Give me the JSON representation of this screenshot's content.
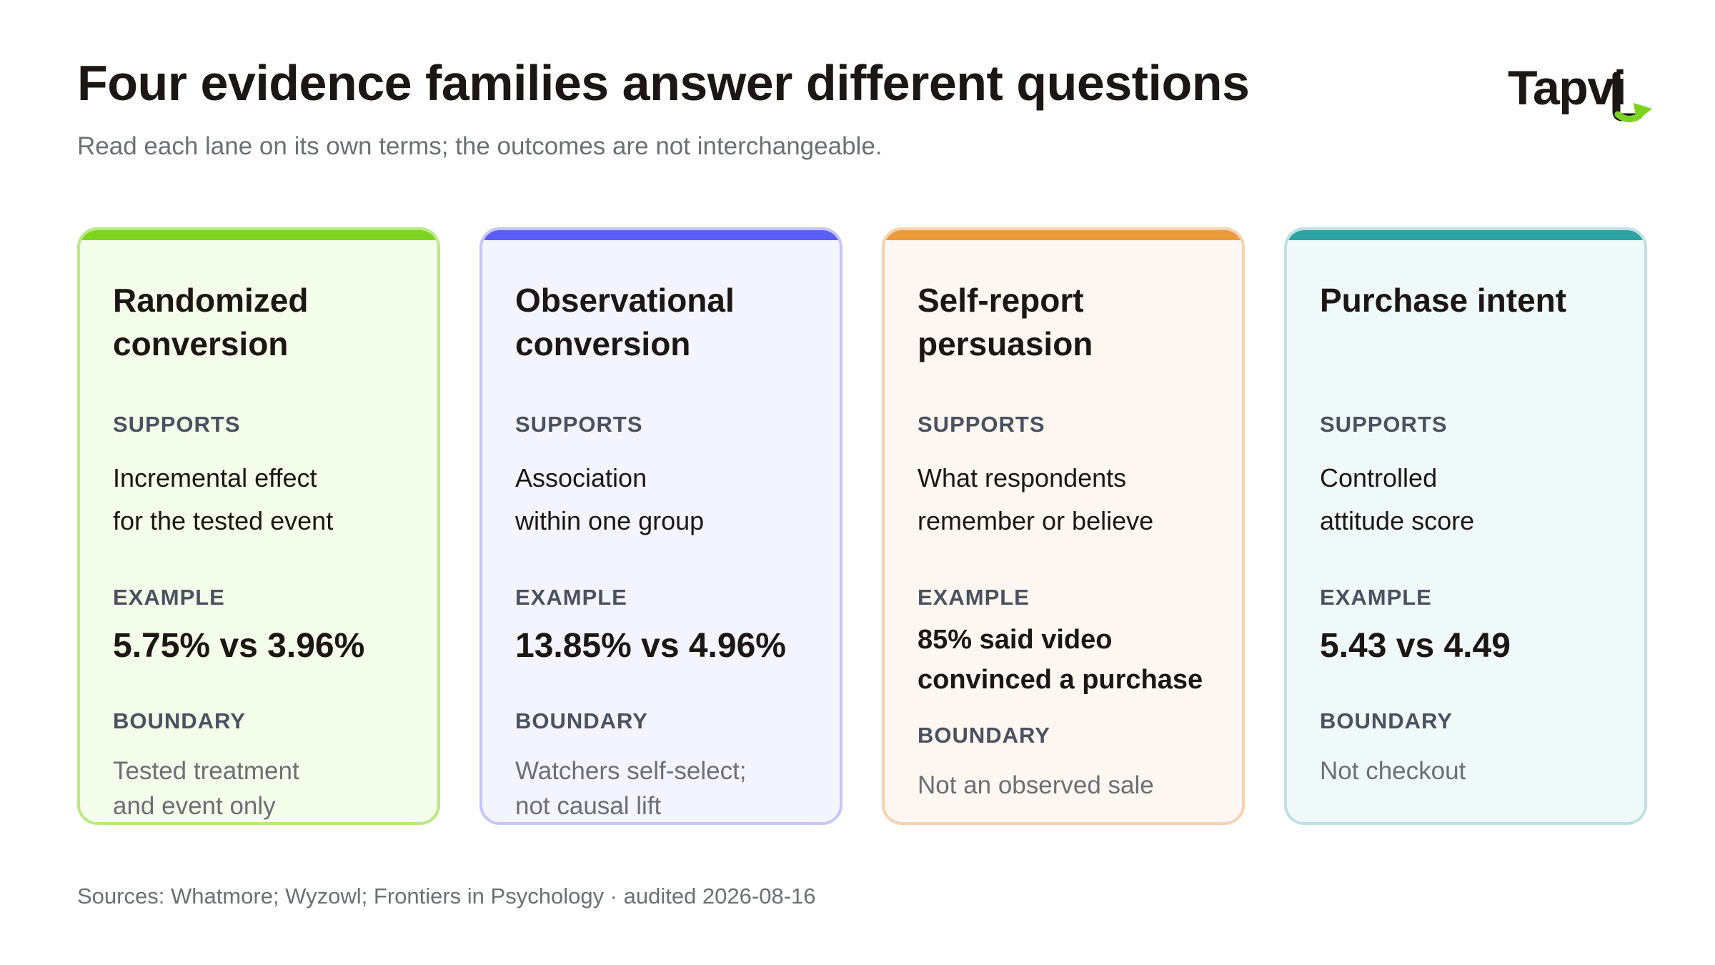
{
  "header": {
    "title": "Four evidence families answer different questions",
    "subtitle": "Read each lane on its own terms; the outcomes are not interchangeable.",
    "logo_text": "Tapvi",
    "logo_mark_color": "#7ed321"
  },
  "labels": {
    "supports": "SUPPORTS",
    "example": "EXAMPLE",
    "boundary": "BOUNDARY"
  },
  "cards": [
    {
      "title": "Randomized conversion",
      "supports_line1": "Incremental effect",
      "supports_line2": "for the tested event",
      "example": "5.75% vs 3.96%",
      "boundary_line1": "Tested treatment",
      "boundary_line2": "and event only",
      "accent_color": "#7ed321",
      "border_color": "#b8ea82",
      "background_color": "#f4fde9"
    },
    {
      "title": "Observational conversion",
      "supports_line1": "Association",
      "supports_line2": "within one group",
      "example": "13.85% vs 4.96%",
      "boundary_line1": "Watchers self-select;",
      "boundary_line2": "not causal lift",
      "accent_color": "#5b5ef4",
      "border_color": "#c4c6f7",
      "background_color": "#f3f4fe"
    },
    {
      "title": "Self-report persuasion",
      "supports_line1": "What respondents",
      "supports_line2": "remember or believe",
      "example_line1": "85% said video",
      "example_line2": "convinced a purchase",
      "boundary_line1": "Not an observed sale",
      "accent_color": "#eb9a3e",
      "border_color": "#f4d3ae",
      "background_color": "#fef6f0"
    },
    {
      "title": "Purchase intent",
      "supports_line1": "Controlled",
      "supports_line2": "attitude score",
      "example": "5.43 vs 4.49",
      "boundary_line1": "Not checkout",
      "accent_color": "#2fa3a3",
      "border_color": "#bfe1e3",
      "background_color": "#f0f9f9"
    }
  ],
  "footer": {
    "sources": "Sources: Whatmore; Wyzowl; Frontiers in Psychology · audited 2026-08-16"
  }
}
